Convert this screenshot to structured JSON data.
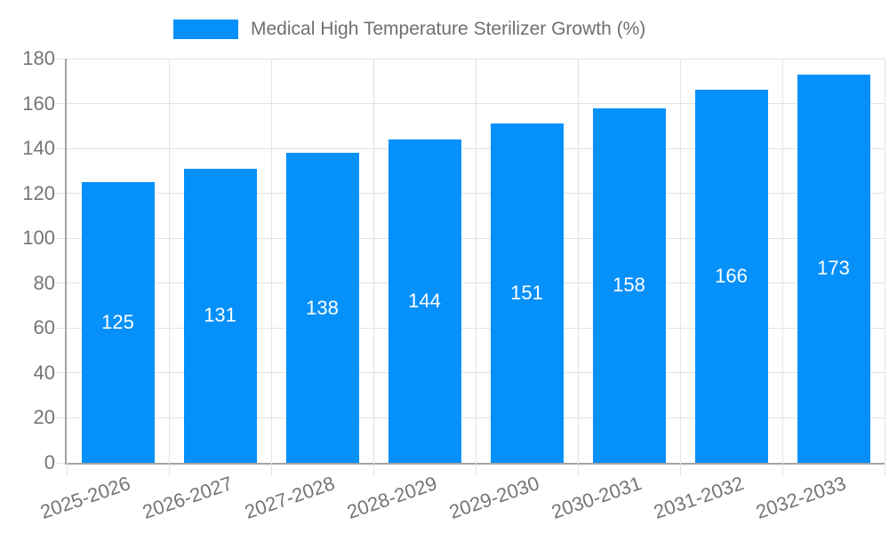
{
  "legend": {
    "label": "Medical High Temperature Sterilizer Growth (%)"
  },
  "chart_data": {
    "type": "bar",
    "title": "Medical High Temperature Sterilizer Growth (%)",
    "categories": [
      "2025-2026",
      "2026-2027",
      "2027-2028",
      "2028-2029",
      "2029-2030",
      "2030-2031",
      "2031-2032",
      "2032-2033"
    ],
    "values": [
      125,
      131,
      138,
      144,
      151,
      158,
      166,
      173
    ],
    "xlabel": "",
    "ylabel": "",
    "ylim": [
      0,
      180
    ],
    "ytick_step": 20,
    "yticks": [
      0,
      20,
      40,
      60,
      80,
      100,
      120,
      140,
      160,
      180
    ],
    "grid": true,
    "legend_position": "top-center",
    "bar_labels_shown": true,
    "colors": {
      "bar": "#0690fa",
      "bar_label_text": "#ffffff",
      "axis_text": "#757575",
      "axis_line": "#a3a3a3",
      "gridline": "#e3e3e3",
      "background": "#ffffff"
    }
  }
}
